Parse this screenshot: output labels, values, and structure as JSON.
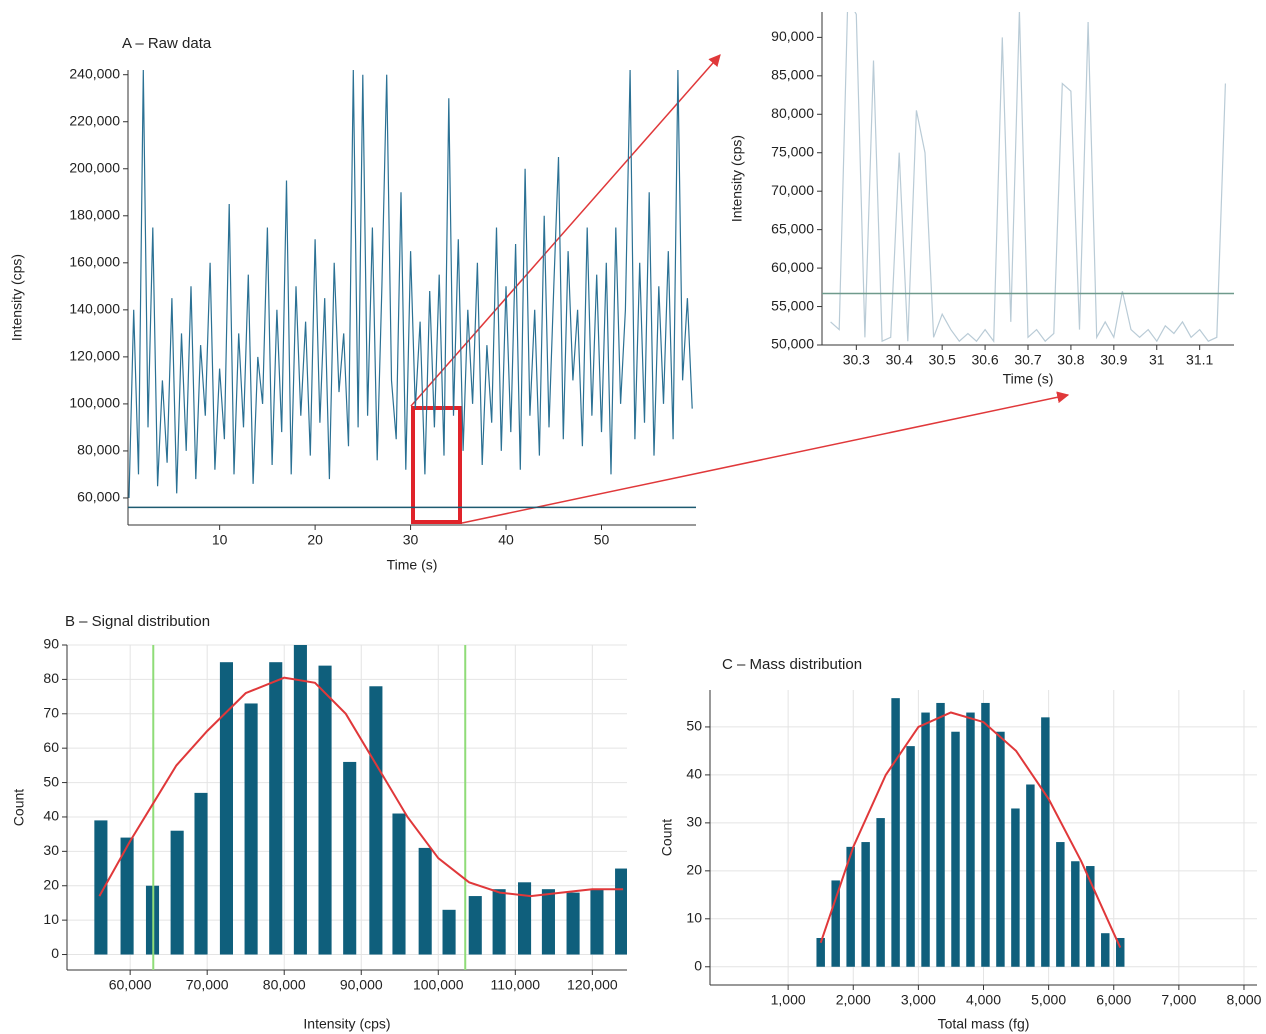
{
  "chart_data": [
    {
      "type": "line",
      "title": "A – Raw data",
      "x_label": "Time (s)",
      "y_label": "Intensity (cps)",
      "xlim": [
        0.4,
        59.9
      ],
      "ylim": [
        48500,
        242000
      ],
      "xticks": [
        10,
        20,
        30,
        40,
        50
      ],
      "yticks": [
        {
          "value": 60000,
          "label": "60,000"
        },
        {
          "value": 80000,
          "label": "80,000"
        },
        {
          "value": 100000,
          "label": "100,000"
        },
        {
          "value": 120000,
          "label": "120,000"
        },
        {
          "value": 140000,
          "label": "140,000"
        },
        {
          "value": 160000,
          "label": "160,000"
        },
        {
          "value": 180000,
          "label": "180,000"
        },
        {
          "value": 200000,
          "label": "200,000"
        },
        {
          "value": 220000,
          "label": "220,000"
        },
        {
          "value": 240000,
          "label": "240,000"
        }
      ],
      "grid": false,
      "threshold": {
        "value": 56000,
        "color": "#1d5a70"
      },
      "series": [
        {
          "color": "#2b7194",
          "x": [
            0.5,
            1,
            1.5,
            2,
            2.5,
            3,
            3.5,
            4,
            4.5,
            5,
            5.5,
            6,
            6.5,
            7,
            7.5,
            8,
            8.5,
            9,
            9.5,
            10,
            10.5,
            11,
            11.5,
            12,
            12.5,
            13,
            13.5,
            14,
            14.5,
            15,
            15.5,
            16,
            16.5,
            17,
            17.5,
            18,
            18.5,
            19,
            19.5,
            20,
            20.5,
            21,
            21.5,
            22,
            22.5,
            23,
            23.5,
            24,
            24.5,
            25,
            25.5,
            26,
            26.5,
            27,
            27.5,
            28,
            28.5,
            29,
            29.5,
            30,
            30.5,
            31,
            31.5,
            32,
            32.5,
            33,
            33.5,
            34,
            34.5,
            35,
            35.5,
            36,
            36.5,
            37,
            37.5,
            38,
            38.5,
            39,
            39.5,
            40,
            40.5,
            41,
            41.5,
            42,
            42.5,
            43,
            43.5,
            44,
            44.5,
            45,
            45.5,
            46,
            46.5,
            47,
            47.5,
            48,
            48.5,
            49,
            49.5,
            50,
            50.5,
            51,
            51.5,
            52,
            52.5,
            53,
            53.5,
            54,
            54.5,
            55,
            55.5,
            56,
            56.5,
            57,
            57.5,
            58,
            58.5,
            59,
            59.5
          ],
          "values": [
            60000,
            140000,
            70000,
            242000,
            90000,
            175000,
            65000,
            110000,
            75000,
            145000,
            62000,
            130000,
            80000,
            150000,
            68000,
            125000,
            95000,
            160000,
            72000,
            115000,
            85000,
            185000,
            70000,
            130000,
            90000,
            155000,
            66000,
            120000,
            100000,
            175000,
            74000,
            140000,
            88000,
            195000,
            70000,
            150000,
            95000,
            135000,
            78000,
            170000,
            92000,
            145000,
            68000,
            160000,
            105000,
            130000,
            82000,
            242000,
            90000,
            240000,
            95000,
            175000,
            76000,
            150000,
            240000,
            110000,
            85000,
            190000,
            72000,
            165000,
            98000,
            135000,
            70000,
            148000,
            90000,
            155000,
            78000,
            230000,
            95000,
            170000,
            80000,
            140000,
            100000,
            160000,
            74000,
            125000,
            92000,
            175000,
            80000,
            150000,
            88000,
            168000,
            72000,
            200000,
            95000,
            140000,
            78000,
            180000,
            90000,
            150000,
            205000,
            85000,
            165000,
            110000,
            140000,
            82000,
            175000,
            95000,
            155000,
            88000,
            160000,
            70000,
            175000,
            100000,
            140000,
            242000,
            85000,
            160000,
            92000,
            190000,
            78000,
            150000,
            100000,
            165000,
            85000,
            242000,
            110000,
            145000,
            98000
          ]
        }
      ]
    },
    {
      "type": "line",
      "x_label": "Time (s)",
      "y_label": "Intensity (cps)",
      "xlim": [
        30.22,
        31.18
      ],
      "ylim": [
        50000,
        93300
      ],
      "xticks": [
        30.3,
        30.4,
        30.5,
        30.6,
        30.7,
        30.8,
        30.9,
        31,
        31.1
      ],
      "yticks": [
        {
          "value": 50000,
          "label": "50,000"
        },
        {
          "value": 55000,
          "label": "55,000"
        },
        {
          "value": 60000,
          "label": "60,000"
        },
        {
          "value": 65000,
          "label": "65,000"
        },
        {
          "value": 70000,
          "label": "70,000"
        },
        {
          "value": 75000,
          "label": "75,000"
        },
        {
          "value": 80000,
          "label": "80,000"
        },
        {
          "value": 85000,
          "label": "85,000"
        },
        {
          "value": 90000,
          "label": "90,000"
        }
      ],
      "grid": false,
      "threshold": {
        "value": 56700,
        "color": "#6f9a8c"
      },
      "series": [
        {
          "color": "#b9cbd6",
          "x": [
            30.24,
            30.26,
            30.28,
            30.3,
            30.32,
            30.34,
            30.36,
            30.38,
            30.4,
            30.42,
            30.44,
            30.46,
            30.48,
            30.5,
            30.52,
            30.54,
            30.56,
            30.58,
            30.6,
            30.62,
            30.64,
            30.66,
            30.68,
            30.7,
            30.72,
            30.74,
            30.76,
            30.78,
            30.8,
            30.82,
            30.84,
            30.86,
            30.88,
            30.9,
            30.92,
            30.94,
            30.96,
            30.98,
            31,
            31.02,
            31.04,
            31.06,
            31.08,
            31.1,
            31.12,
            31.14,
            31.16
          ],
          "values": [
            53000,
            52000,
            95000,
            93000,
            51000,
            87000,
            50500,
            51000,
            75000,
            50500,
            80500,
            75000,
            51000,
            54000,
            52000,
            50500,
            51500,
            50500,
            52000,
            50500,
            90000,
            53000,
            93500,
            51000,
            52000,
            50500,
            51500,
            84000,
            83000,
            52000,
            92000,
            51000,
            53000,
            51000,
            57000,
            52000,
            51000,
            52000,
            50500,
            52500,
            51500,
            53000,
            51000,
            52000,
            50500,
            51000,
            84000
          ]
        }
      ]
    },
    {
      "type": "bar",
      "title": "B – Signal distribution",
      "x_label": "Intensity (cps)",
      "y_label": "Count",
      "xlim": [
        51800,
        124500
      ],
      "ylim": [
        -4.5,
        90
      ],
      "xticks": [
        {
          "value": 60000,
          "label": "60,000"
        },
        {
          "value": 70000,
          "label": "70,000"
        },
        {
          "value": 80000,
          "label": "80,000"
        },
        {
          "value": 90000,
          "label": "90,000"
        },
        {
          "value": 100000,
          "label": "100,000"
        },
        {
          "value": 110000,
          "label": "110,000"
        },
        {
          "value": 120000,
          "label": "120,000"
        }
      ],
      "yticks": [
        0,
        10,
        20,
        30,
        40,
        50,
        60,
        70,
        80,
        90
      ],
      "grid": true,
      "color": "#0f5f7c",
      "x": [
        56200,
        59600,
        62900,
        66100,
        69200,
        72500,
        75700,
        78900,
        82100,
        85300,
        88500,
        91900,
        94900,
        98300,
        101400,
        104800,
        107900,
        111200,
        114300,
        117500,
        120600,
        123800
      ],
      "values": [
        39,
        34,
        20,
        36,
        47,
        85,
        73,
        85,
        90,
        84,
        56,
        78,
        41,
        31,
        13,
        17,
        19,
        21,
        19,
        18,
        19,
        25
      ],
      "fit": {
        "color": "#e0383a",
        "x": [
          56000,
          60000,
          63000,
          66000,
          70000,
          75000,
          80000,
          84000,
          88000,
          92000,
          96000,
          100000,
          104000,
          108000,
          112000,
          116000,
          120000,
          124000
        ],
        "values": [
          17,
          33,
          44,
          55,
          65,
          76,
          80.5,
          79,
          70,
          55,
          40,
          28,
          21,
          18,
          17,
          18,
          19,
          19
        ]
      },
      "vlines": {
        "color": "#8fdc78",
        "values": [
          63000,
          103500
        ]
      }
    },
    {
      "type": "bar",
      "title": "C – Mass distribution",
      "x_label": "Total mass (fg)",
      "y_label": "Count",
      "xlim": [
        -200,
        8200
      ],
      "ylim": [
        -3.8,
        57.7
      ],
      "xticks": [
        {
          "value": 1000,
          "label": "1,000"
        },
        {
          "value": 2000,
          "label": "2,000"
        },
        {
          "value": 3000,
          "label": "3,000"
        },
        {
          "value": 4000,
          "label": "4,000"
        },
        {
          "value": 5000,
          "label": "5,000"
        },
        {
          "value": 6000,
          "label": "6,000"
        },
        {
          "value": 7000,
          "label": "7,000"
        },
        {
          "value": 8000,
          "label": "8,000"
        }
      ],
      "yticks": [
        0,
        10,
        20,
        30,
        40,
        50
      ],
      "grid": true,
      "color": "#0f5f7c",
      "x": [
        1500,
        1730,
        1960,
        2190,
        2420,
        2650,
        2880,
        3110,
        3340,
        3570,
        3800,
        4030,
        4260,
        4490,
        4720,
        4950,
        5180,
        5410,
        5640,
        5870,
        6100
      ],
      "values": [
        6,
        18,
        25,
        26,
        31,
        56,
        46,
        53,
        55,
        49,
        53,
        55,
        49,
        33,
        38,
        52,
        26,
        22,
        21,
        7,
        6
      ],
      "fit": {
        "color": "#e0383a",
        "x": [
          1500,
          2000,
          2500,
          3000,
          3500,
          4000,
          4500,
          5000,
          5500,
          6000,
          6100
        ],
        "values": [
          5,
          25,
          40,
          50,
          53,
          51,
          45,
          35,
          22,
          7,
          4
        ]
      }
    }
  ]
}
